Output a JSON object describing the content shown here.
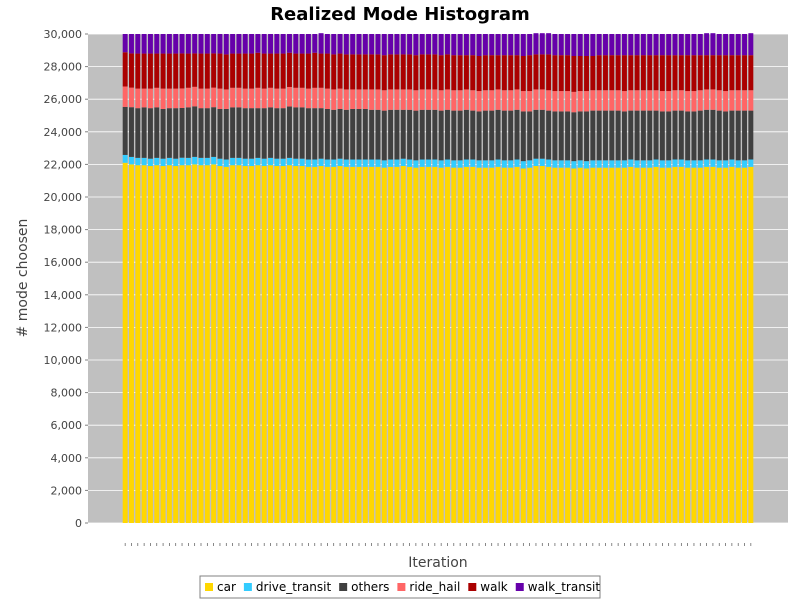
{
  "chart_data": {
    "type": "bar",
    "stacked": true,
    "title": "Realized Mode Histogram",
    "xlabel": "Iteration",
    "ylabel": "# mode choosen",
    "ylim": [
      0,
      30000
    ],
    "yticks": [
      0,
      2000,
      4000,
      6000,
      8000,
      10000,
      12000,
      14000,
      16000,
      18000,
      20000,
      22000,
      24000,
      26000,
      28000,
      30000
    ],
    "ytick_labels": [
      "0",
      "2,000",
      "4,000",
      "6,000",
      "8,000",
      "10,000",
      "12,000",
      "14,000",
      "16,000",
      "18,000",
      "20,000",
      "22,000",
      "24,000",
      "26,000",
      "28,000",
      "30,000"
    ],
    "categories": [
      "0",
      "1",
      "2",
      "3",
      "4",
      "5",
      "6",
      "7",
      "8",
      "9",
      "10",
      "11",
      "12",
      "13",
      "14",
      "15",
      "16",
      "17",
      "18",
      "19",
      "20",
      "21",
      "22",
      "23",
      "24",
      "25",
      "26",
      "27",
      "28",
      "29",
      "30",
      "31",
      "32",
      "33",
      "34",
      "35",
      "36",
      "37",
      "38",
      "39",
      "40",
      "41",
      "42",
      "43",
      "44",
      "45",
      "46",
      "47",
      "48",
      "49",
      "50",
      "51",
      "52",
      "53",
      "54",
      "55",
      "56",
      "57",
      "58",
      "59",
      "60",
      "61",
      "62",
      "63",
      "64",
      "65",
      "66",
      "67",
      "68",
      "69",
      "70",
      "71",
      "72",
      "73",
      "74",
      "75",
      "76",
      "77",
      "78",
      "79",
      "80",
      "81",
      "82",
      "83",
      "84",
      "85",
      "86",
      "87",
      "88",
      "89",
      "90",
      "91",
      "92",
      "93",
      "94",
      "95",
      "96",
      "97",
      "98",
      "99"
    ],
    "series": [
      {
        "name": "car",
        "color": "#FFD700",
        "values": [
          22100,
          22000,
          21950,
          21950,
          21900,
          21950,
          21900,
          21950,
          21900,
          21950,
          21950,
          22000,
          21950,
          21950,
          22000,
          21900,
          21850,
          21950,
          21950,
          21900,
          21900,
          21950,
          21900,
          21950,
          21900,
          21900,
          21950,
          21900,
          21900,
          21850,
          21850,
          21900,
          21850,
          21850,
          21900,
          21850,
          21850,
          21850,
          21850,
          21850,
          21850,
          21800,
          21850,
          21850,
          21900,
          21850,
          21800,
          21850,
          21850,
          21850,
          21800,
          21850,
          21800,
          21800,
          21850,
          21850,
          21800,
          21800,
          21800,
          21850,
          21800,
          21800,
          21850,
          21750,
          21800,
          21900,
          21900,
          21850,
          21800,
          21800,
          21800,
          21750,
          21800,
          21750,
          21800,
          21800,
          21800,
          21800,
          21800,
          21800,
          21850,
          21800,
          21800,
          21800,
          21850,
          21800,
          21800,
          21850,
          21850,
          21800,
          21800,
          21800,
          21850,
          21850,
          21800,
          21800,
          21850,
          21800,
          21800,
          21850
        ]
      },
      {
        "name": "drive_transit",
        "color": "#33CCFF",
        "values": [
          480,
          460,
          450,
          450,
          450,
          450,
          450,
          450,
          450,
          460,
          450,
          460,
          450,
          450,
          460,
          450,
          450,
          450,
          450,
          450,
          450,
          450,
          450,
          450,
          450,
          450,
          450,
          450,
          450,
          450,
          450,
          450,
          450,
          450,
          450,
          450,
          450,
          450,
          450,
          450,
          450,
          450,
          450,
          450,
          450,
          450,
          450,
          450,
          450,
          450,
          450,
          450,
          450,
          450,
          450,
          450,
          450,
          450,
          450,
          450,
          450,
          450,
          450,
          450,
          450,
          450,
          450,
          450,
          450,
          450,
          450,
          450,
          450,
          450,
          450,
          450,
          450,
          450,
          450,
          450,
          450,
          450,
          450,
          450,
          450,
          450,
          450,
          450,
          450,
          450,
          450,
          450,
          450,
          450,
          450,
          450,
          450,
          450,
          450,
          450
        ]
      },
      {
        "name": "others",
        "color": "#404040",
        "values": [
          2950,
          3050,
          3050,
          3100,
          3100,
          3100,
          3050,
          3050,
          3100,
          3050,
          3100,
          3100,
          3050,
          3050,
          3050,
          3050,
          3100,
          3100,
          3100,
          3100,
          3100,
          3050,
          3100,
          3100,
          3100,
          3100,
          3150,
          3150,
          3150,
          3150,
          3150,
          3100,
          3100,
          3050,
          3050,
          3050,
          3100,
          3100,
          3100,
          3050,
          3050,
          3050,
          3050,
          3050,
          3000,
          3050,
          3050,
          3050,
          3050,
          3050,
          3050,
          3050,
          3050,
          3050,
          3050,
          3000,
          3000,
          3050,
          3050,
          3050,
          3050,
          3050,
          3050,
          3050,
          3000,
          3000,
          3000,
          3000,
          3000,
          3000,
          3000,
          3000,
          3000,
          3050,
          3050,
          3050,
          3050,
          3050,
          3050,
          3000,
          3000,
          3050,
          3050,
          3050,
          3000,
          3000,
          3000,
          3000,
          3000,
          3000,
          3000,
          3050,
          3050,
          3050,
          3050,
          3000,
          3000,
          3050,
          3050,
          3000
        ]
      },
      {
        "name": "ride_hail",
        "color": "#FF6666",
        "values": [
          1250,
          1200,
          1200,
          1150,
          1200,
          1200,
          1250,
          1200,
          1200,
          1200,
          1200,
          1200,
          1200,
          1200,
          1200,
          1250,
          1200,
          1200,
          1200,
          1200,
          1200,
          1250,
          1200,
          1200,
          1200,
          1200,
          1200,
          1200,
          1200,
          1200,
          1250,
          1250,
          1250,
          1250,
          1250,
          1250,
          1200,
          1200,
          1200,
          1250,
          1250,
          1250,
          1250,
          1250,
          1250,
          1250,
          1250,
          1250,
          1250,
          1250,
          1250,
          1250,
          1250,
          1250,
          1250,
          1250,
          1250,
          1250,
          1250,
          1250,
          1250,
          1250,
          1250,
          1250,
          1250,
          1250,
          1250,
          1250,
          1250,
          1250,
          1250,
          1250,
          1250,
          1250,
          1250,
          1250,
          1250,
          1250,
          1250,
          1250,
          1250,
          1250,
          1250,
          1250,
          1250,
          1250,
          1250,
          1250,
          1250,
          1250,
          1250,
          1250,
          1250,
          1250,
          1250,
          1250,
          1250,
          1250,
          1250,
          1250
        ]
      },
      {
        "name": "walk",
        "color": "#AA0000",
        "values": [
          2100,
          2100,
          2150,
          2150,
          2150,
          2100,
          2150,
          2150,
          2150,
          2150,
          2100,
          2050,
          2150,
          2150,
          2100,
          2150,
          2150,
          2100,
          2100,
          2150,
          2150,
          2150,
          2150,
          2100,
          2150,
          2150,
          2100,
          2100,
          2100,
          2150,
          2150,
          2100,
          2150,
          2150,
          2150,
          2150,
          2150,
          2150,
          2150,
          2150,
          2150,
          2150,
          2150,
          2150,
          2150,
          2150,
          2150,
          2150,
          2150,
          2150,
          2150,
          2150,
          2150,
          2150,
          2100,
          2150,
          2150,
          2150,
          2150,
          2100,
          2150,
          2150,
          2100,
          2150,
          2200,
          2150,
          2150,
          2200,
          2200,
          2200,
          2200,
          2200,
          2150,
          2150,
          2100,
          2150,
          2150,
          2150,
          2150,
          2200,
          2150,
          2150,
          2150,
          2150,
          2150,
          2200,
          2200,
          2150,
          2150,
          2200,
          2200,
          2150,
          2100,
          2100,
          2150,
          2200,
          2150,
          2150,
          2150,
          2150
        ]
      },
      {
        "name": "walk_transit",
        "color": "#6600AA",
        "values": [
          1120,
          1190,
          1200,
          1200,
          1200,
          1200,
          1200,
          1200,
          1200,
          1190,
          1200,
          1190,
          1200,
          1200,
          1190,
          1200,
          1250,
          1200,
          1200,
          1200,
          1200,
          1150,
          1200,
          1200,
          1200,
          1200,
          1150,
          1200,
          1200,
          1200,
          1150,
          1250,
          1200,
          1250,
          1200,
          1250,
          1250,
          1250,
          1250,
          1250,
          1250,
          1300,
          1250,
          1250,
          1250,
          1250,
          1300,
          1250,
          1250,
          1250,
          1300,
          1250,
          1300,
          1300,
          1300,
          1300,
          1350,
          1300,
          1300,
          1300,
          1300,
          1300,
          1300,
          1350,
          1300,
          1300,
          1300,
          1300,
          1300,
          1300,
          1300,
          1350,
          1350,
          1350,
          1350,
          1300,
          1300,
          1300,
          1300,
          1300,
          1300,
          1300,
          1300,
          1300,
          1300,
          1300,
          1300,
          1300,
          1300,
          1300,
          1300,
          1300,
          1350,
          1350,
          1300,
          1300,
          1300,
          1300,
          1300,
          1350
        ]
      }
    ],
    "legend_position": "bottom",
    "grid": true,
    "background_color": "#C0C0C0",
    "grid_color": "#FFFFFF"
  }
}
